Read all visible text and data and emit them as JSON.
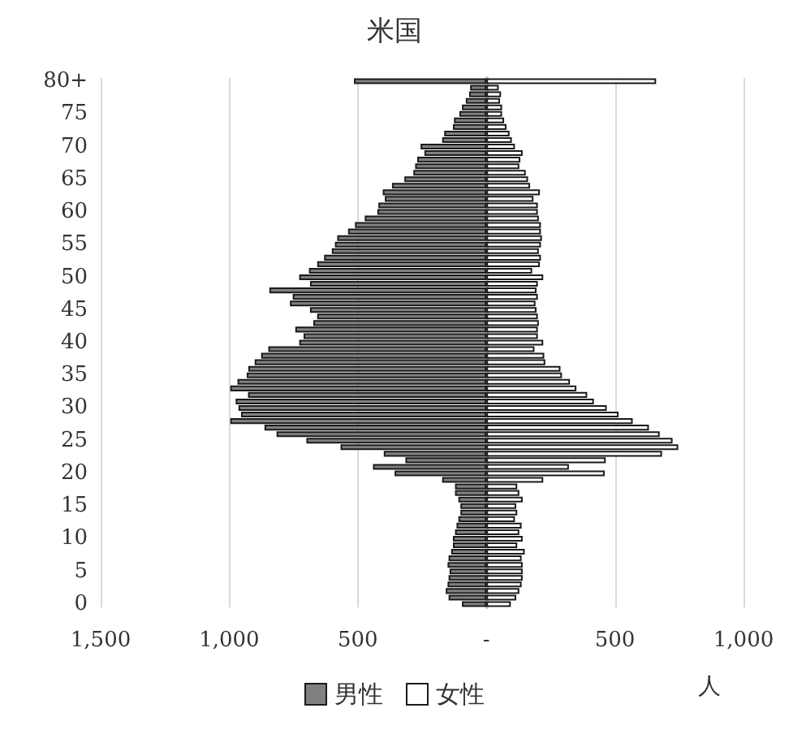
{
  "chart_data": {
    "type": "bar",
    "orientation": "horizontal",
    "title": "米国",
    "xlabel": "人",
    "categories": [
      "80+",
      null,
      null,
      null,
      null,
      "75",
      null,
      null,
      null,
      null,
      "70",
      null,
      null,
      null,
      null,
      "65",
      null,
      null,
      null,
      null,
      "60",
      null,
      null,
      null,
      null,
      "55",
      null,
      null,
      null,
      null,
      "50",
      null,
      null,
      null,
      null,
      "45",
      null,
      null,
      null,
      null,
      "40",
      null,
      null,
      null,
      null,
      "35",
      null,
      null,
      null,
      null,
      "30",
      null,
      null,
      null,
      null,
      "25",
      null,
      null,
      null,
      null,
      "20",
      null,
      null,
      null,
      null,
      "15",
      null,
      null,
      null,
      null,
      "10",
      null,
      null,
      null,
      null,
      "5",
      null,
      null,
      null,
      null,
      "0"
    ],
    "series": [
      {
        "name": "男性",
        "color": "#808080",
        "values": [
          -515,
          -63,
          -67,
          -80,
          -95,
          -105,
          -126,
          -130,
          -164,
          -172,
          -256,
          -241,
          -269,
          -277,
          -284,
          -319,
          -367,
          -403,
          -395,
          -420,
          -424,
          -473,
          -511,
          -538,
          -580,
          -589,
          -601,
          -631,
          -658,
          -690,
          -728,
          -686,
          -844,
          -753,
          -764,
          -686,
          -658,
          -673,
          -743,
          -711,
          -728,
          -848,
          -876,
          -901,
          -926,
          -932,
          -968,
          -996,
          -927,
          -975,
          -964,
          -954,
          -996,
          -863,
          -816,
          -700,
          -567,
          -399,
          -315,
          -441,
          -357,
          -172,
          -122,
          -122,
          -109,
          -101,
          -101,
          -109,
          -116,
          -122,
          -130,
          -130,
          -137,
          -147,
          -151,
          -143,
          -147,
          -151,
          -158,
          -147,
          -95
        ]
      },
      {
        "name": "女性",
        "color": "#ffffff",
        "values": [
          660,
          48,
          57,
          53,
          61,
          61,
          69,
          78,
          90,
          99,
          111,
          141,
          132,
          128,
          153,
          162,
          170,
          208,
          183,
          200,
          200,
          204,
          212,
          212,
          216,
          212,
          204,
          212,
          208,
          178,
          221,
          200,
          195,
          200,
          191,
          195,
          200,
          204,
          200,
          200,
          221,
          187,
          225,
          229,
          288,
          294,
          325,
          350,
          392,
          418,
          468,
          514,
          569,
          632,
          674,
          724,
          746,
          683,
          464,
          321,
          460,
          221,
          120,
          128,
          141,
          116,
          120,
          111,
          137,
          128,
          141,
          120,
          149,
          137,
          141,
          141,
          141,
          137,
          128,
          116,
          95
        ]
      }
    ],
    "xlim": [
      -1500,
      1000
    ],
    "xticks": [
      {
        "value": -1500,
        "label": "1,500"
      },
      {
        "value": -1000,
        "label": "1,000"
      },
      {
        "value": -500,
        "label": "500"
      },
      {
        "value": 0,
        "label": "-"
      },
      {
        "value": 500,
        "label": "500"
      },
      {
        "value": 1000,
        "label": "1,000"
      }
    ],
    "stacked": true,
    "grid": "x",
    "legend": "bottom"
  }
}
